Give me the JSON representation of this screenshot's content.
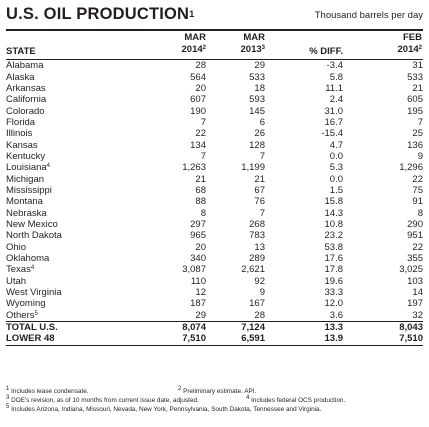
{
  "title": "U.S. OIL PRODUCTION",
  "title_note": "1",
  "units": "Thousand barrels per day",
  "columns": {
    "state": "STATE",
    "mar2014_line1": "MAR",
    "mar2014_line2": "2014",
    "mar2014_note": "2",
    "mar2013_line1": "MAR",
    "mar2013_line2": "2013",
    "mar2013_note": "3",
    "diff": "% DIFF.",
    "feb2014_line1": "FEB",
    "feb2014_line2": "2014",
    "feb2014_note": "2"
  },
  "rows": [
    {
      "state": "Alabama",
      "note": "",
      "mar2014": "28",
      "mar2013": "29",
      "diff": "-3.4",
      "feb2014": "31"
    },
    {
      "state": "Alaska",
      "note": "",
      "mar2014": "564",
      "mar2013": "533",
      "diff": "5.8",
      "feb2014": "533"
    },
    {
      "state": "Arkansas",
      "note": "",
      "mar2014": "20",
      "mar2013": "18",
      "diff": "11.1",
      "feb2014": "21"
    },
    {
      "state": "California",
      "note": "",
      "mar2014": "607",
      "mar2013": "593",
      "diff": "2.4",
      "feb2014": "605"
    },
    {
      "state": "Colorado",
      "note": "",
      "mar2014": "190",
      "mar2013": "145",
      "diff": "31.0",
      "feb2014": "195"
    },
    {
      "state": "Florida",
      "note": "",
      "mar2014": "7",
      "mar2013": "6",
      "diff": "16.7",
      "feb2014": "7"
    },
    {
      "state": "Illinois",
      "note": "",
      "mar2014": "22",
      "mar2013": "26",
      "diff": "-15.4",
      "feb2014": "25"
    },
    {
      "state": "Kansas",
      "note": "",
      "mar2014": "134",
      "mar2013": "128",
      "diff": "4.7",
      "feb2014": "136"
    },
    {
      "state": "Kentucky",
      "note": "",
      "mar2014": "7",
      "mar2013": "7",
      "diff": "0.0",
      "feb2014": "9"
    },
    {
      "state": "Louisiana",
      "note": "4",
      "mar2014": "1,263",
      "mar2013": "1,199",
      "diff": "5.3",
      "feb2014": "1,296"
    },
    {
      "state": "Michigan",
      "note": "",
      "mar2014": "21",
      "mar2013": "21",
      "diff": "0.0",
      "feb2014": "22"
    },
    {
      "state": "Mississippi",
      "note": "",
      "mar2014": "68",
      "mar2013": "67",
      "diff": "1.5",
      "feb2014": "75"
    },
    {
      "state": "Montana",
      "note": "",
      "mar2014": "88",
      "mar2013": "76",
      "diff": "15.8",
      "feb2014": "91"
    },
    {
      "state": "Nebraska",
      "note": "",
      "mar2014": "8",
      "mar2013": "7",
      "diff": "14.3",
      "feb2014": "8"
    },
    {
      "state": "New Mexico",
      "note": "",
      "mar2014": "297",
      "mar2013": "268",
      "diff": "10.8",
      "feb2014": "290"
    },
    {
      "state": "North Dakota",
      "note": "",
      "mar2014": "965",
      "mar2013": "783",
      "diff": "23.2",
      "feb2014": "951"
    },
    {
      "state": "Ohio",
      "note": "",
      "mar2014": "20",
      "mar2013": "13",
      "diff": "53.8",
      "feb2014": "22"
    },
    {
      "state": "Oklahoma",
      "note": "",
      "mar2014": "340",
      "mar2013": "289",
      "diff": "17.6",
      "feb2014": "355"
    },
    {
      "state": "Texas",
      "note": "4",
      "mar2014": "3,087",
      "mar2013": "2,621",
      "diff": "17.8",
      "feb2014": "3,025"
    },
    {
      "state": "Utah",
      "note": "",
      "mar2014": "110",
      "mar2013": "92",
      "diff": "19.6",
      "feb2014": "103"
    },
    {
      "state": "West Virginia",
      "note": "",
      "mar2014": "12",
      "mar2013": "9",
      "diff": "33.3",
      "feb2014": "14"
    },
    {
      "state": "Wyoming",
      "note": "",
      "mar2014": "187",
      "mar2013": "167",
      "diff": "12.0",
      "feb2014": "197"
    },
    {
      "state": "Others",
      "note": "5",
      "mar2014": "29",
      "mar2013": "28",
      "diff": "3.6",
      "feb2014": "32"
    }
  ],
  "total": {
    "label": "TOTAL U.S.",
    "mar2014": "8,074",
    "mar2013": "7,124",
    "diff": "13.3",
    "feb2014": "8,043"
  },
  "lower48": {
    "label": "LOWER 48",
    "mar2014": "7,510",
    "mar2013": "6,591",
    "diff": "13.9",
    "feb2014": "7,510"
  },
  "footnotes": {
    "n1": {
      "mark": "1",
      "text": "Includes lease condensate."
    },
    "n2": {
      "mark": "2",
      "text": "Preliminary estimate. API."
    },
    "n3": {
      "mark": "3",
      "text": "DOE's revision, as of 10 months from current issue date, adjusted."
    },
    "n4": {
      "mark": "4",
      "text": "Includes federal OCS production."
    },
    "n5": {
      "mark": "5",
      "text": "Includes Arizona, Indiana, Missouri, Nevada, New York, Pennsylvania, South Dakota, Tennessee and Virginia."
    }
  }
}
